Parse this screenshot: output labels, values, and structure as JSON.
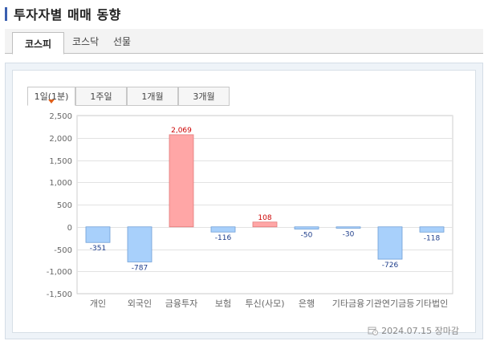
{
  "page": {
    "title": "투자자별 매매 동향"
  },
  "market_tabs": [
    {
      "label": "코스피",
      "active": true
    },
    {
      "label": "코스닥",
      "active": false
    },
    {
      "label": "선물",
      "active": false
    }
  ],
  "period_tabs": [
    {
      "label": "1일(1분)",
      "active": true
    },
    {
      "label": "1주일",
      "active": false
    },
    {
      "label": "1개월",
      "active": false
    },
    {
      "label": "3개월",
      "active": false
    }
  ],
  "footer": {
    "timestamp": "2024.07.15 장마감"
  },
  "colors": {
    "positive_fill": "#ffa6a6",
    "positive_stroke": "#e27a7a",
    "positive_label": "#cc0000",
    "negative_fill": "#a8d0fb",
    "negative_stroke": "#6f9fd6",
    "negative_label": "#1d3c8a",
    "grid": "#e2e2e2",
    "axis_text": "#666666"
  },
  "chart_data": {
    "type": "bar",
    "categories": [
      "개인",
      "외국인",
      "금융투자",
      "보험",
      "투신(사모)",
      "은행",
      "기타금융",
      "기관연기금등",
      "기타법인"
    ],
    "values": [
      -351,
      -787,
      2069,
      -116,
      108,
      -50,
      -30,
      -726,
      -118
    ],
    "data_labels": [
      "-351",
      "-787",
      "2,069",
      "-116",
      "108",
      "-50",
      "-30",
      "-726",
      "-118"
    ],
    "y_ticks": [
      "2,500",
      "2,000",
      "1,500",
      "1,000",
      "500",
      "0",
      "-500",
      "-1,000",
      "-1,500"
    ],
    "ylim": [
      -1500,
      2500
    ],
    "grid": true
  }
}
